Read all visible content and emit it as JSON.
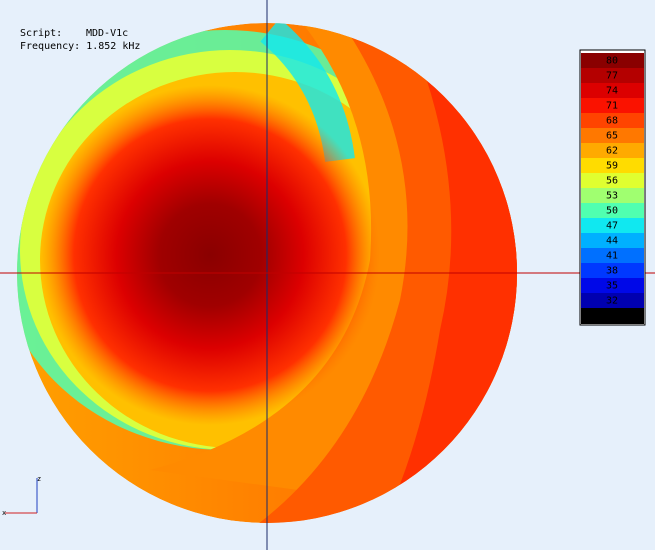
{
  "header": {
    "script_label": "Script:",
    "script": "MDD-V1c",
    "frequency": "Frequency: 1.852 kHz"
  },
  "axes": {
    "vertical": "z",
    "horizontal": "x"
  },
  "colorbar": {
    "labels": [
      "80",
      "77",
      "74",
      "71",
      "68",
      "65",
      "62",
      "59",
      "56",
      "53",
      "50",
      "47",
      "44",
      "41",
      "38",
      "35",
      "32"
    ],
    "colors": [
      "#8a0000",
      "#b40000",
      "#dc0000",
      "#fa1200",
      "#ff4400",
      "#ff7800",
      "#ffaa00",
      "#ffdc00",
      "#e0ff30",
      "#a0ff70",
      "#50ffb0",
      "#10e8f0",
      "#00b0ff",
      "#0070ff",
      "#0038ff",
      "#0008e8",
      "#0000b0"
    ],
    "below_color": "#000000"
  }
}
